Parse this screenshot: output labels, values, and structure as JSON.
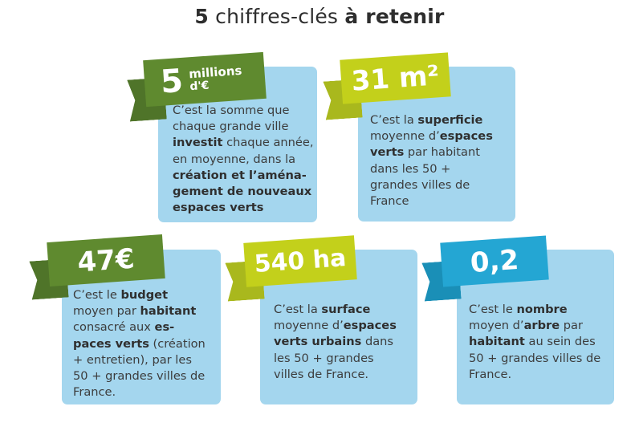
{
  "title": {
    "strong1": "5",
    "regular": " chiffres-clés ",
    "strong2": "à retenir"
  },
  "cards": [
    {
      "big": "5",
      "unit_top": "millions",
      "unit_bottom": "d'€",
      "lines": [
        [
          {
            "t": "C’est la somme que",
            "b": false
          }
        ],
        [
          {
            "t": "chaque grande ville",
            "b": false
          }
        ],
        [
          {
            "t": "investit",
            "b": true
          },
          {
            "t": " chaque année,",
            "b": false
          }
        ],
        [
          {
            "t": "en moyenne, dans la",
            "b": false
          }
        ],
        [
          {
            "t": "création et l’aména-",
            "b": true
          }
        ],
        [
          {
            "t": "gement de nouveaux",
            "b": true
          }
        ],
        [
          {
            "t": "espaces verts",
            "b": true
          }
        ]
      ]
    },
    {
      "big": "31 m²",
      "lines": [
        [
          {
            "t": "C’est la ",
            "b": false
          },
          {
            "t": "superficie",
            "b": true
          }
        ],
        [
          {
            "t": "moyenne d’",
            "b": false
          },
          {
            "t": "espaces",
            "b": true
          }
        ],
        [
          {
            "t": "verts",
            "b": true
          },
          {
            "t": " par habitant",
            "b": false
          }
        ],
        [
          {
            "t": "dans les 50 +",
            "b": false
          }
        ],
        [
          {
            "t": "grandes villes de",
            "b": false
          }
        ],
        [
          {
            "t": "France",
            "b": false
          }
        ]
      ]
    },
    {
      "big": "47€",
      "lines": [
        [
          {
            "t": "C’est le ",
            "b": false
          },
          {
            "t": "budget",
            "b": true
          }
        ],
        [
          {
            "t": "moyen par ",
            "b": false
          },
          {
            "t": "habitant",
            "b": true
          }
        ],
        [
          {
            "t": "consacré aux ",
            "b": false
          },
          {
            "t": "es-",
            "b": true
          }
        ],
        [
          {
            "t": "paces verts",
            "b": true
          },
          {
            "t": " (création",
            "b": false
          }
        ],
        [
          {
            "t": "+ entretien), par les",
            "b": false
          }
        ],
        [
          {
            "t": "50 + grandes villes de",
            "b": false
          }
        ],
        [
          {
            "t": "France.",
            "b": false
          }
        ]
      ]
    },
    {
      "big": "540 ha",
      "lines": [
        [
          {
            "t": "C’est la ",
            "b": false
          },
          {
            "t": "surface",
            "b": true
          }
        ],
        [
          {
            "t": "moyenne d’",
            "b": false
          },
          {
            "t": "espaces",
            "b": true
          }
        ],
        [
          {
            "t": "verts urbains",
            "b": true
          },
          {
            "t": " dans",
            "b": false
          }
        ],
        [
          {
            "t": "les 50 + grandes",
            "b": false
          }
        ],
        [
          {
            "t": "villes de France.",
            "b": false
          }
        ]
      ]
    },
    {
      "big": "0,2",
      "lines": [
        [
          {
            "t": "C’est le ",
            "b": false
          },
          {
            "t": "nombre",
            "b": true
          }
        ],
        [
          {
            "t": "moyen d’",
            "b": false
          },
          {
            "t": "arbre",
            "b": true
          },
          {
            "t": " par",
            "b": false
          }
        ],
        [
          {
            "t": "habitant",
            "b": true
          },
          {
            "t": " au sein des",
            "b": false
          }
        ],
        [
          {
            "t": "50 + grandes villes de",
            "b": false
          }
        ],
        [
          {
            "t": "France.",
            "b": false
          }
        ]
      ]
    }
  ]
}
